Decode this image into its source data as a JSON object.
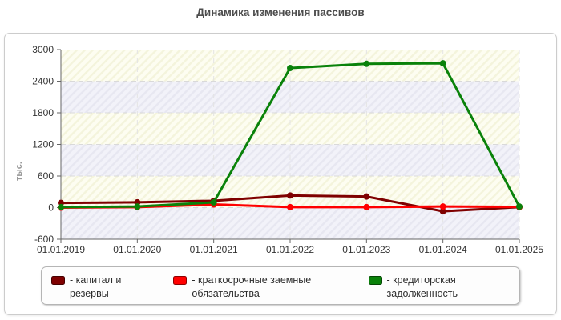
{
  "chart_data": {
    "type": "line",
    "title": "Динамика изменения пассивов",
    "ylabel": "тыс.",
    "xlabel": "",
    "categories": [
      "01.01.2019",
      "01.01.2020",
      "01.01.2021",
      "01.01.2022",
      "01.01.2023",
      "01.01.2024",
      "01.01.2025"
    ],
    "series": [
      {
        "name": "- капитал и резервы",
        "color": "#7f0000",
        "values": [
          90,
          100,
          130,
          230,
          210,
          -70,
          10
        ]
      },
      {
        "name": "- краткосрочные заемные обязательства",
        "color": "#ff0000",
        "values": [
          0,
          10,
          60,
          10,
          10,
          20,
          15
        ]
      },
      {
        "name": "- кредиторская задолженность",
        "color": "#0a820a",
        "values": [
          10,
          20,
          100,
          2650,
          2730,
          2740,
          20
        ]
      }
    ],
    "ylim": [
      -600,
      3000
    ],
    "ytick_step": 600,
    "grid": true,
    "legend_position": "bottom",
    "band_colors": {
      "cream_bg": "#fdfdf1",
      "cream_line": "#f4f4dc",
      "lavender_bg": "#f2f2f9",
      "lavender_line": "#e7e7f1"
    },
    "grid_color": "#d9d9d9",
    "axis_color": "#666666"
  }
}
